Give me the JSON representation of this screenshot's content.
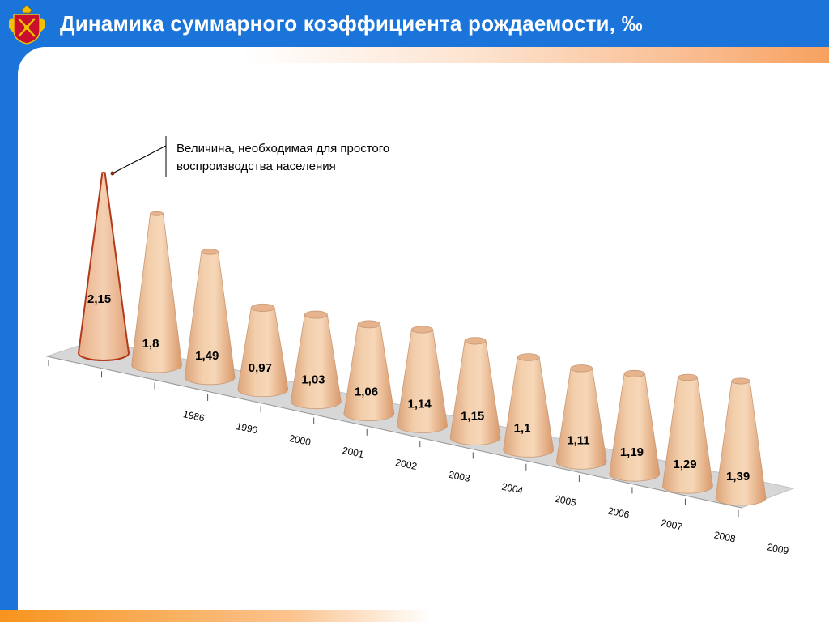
{
  "title": "Динамика суммарного коэффициента рождаемости, ‰",
  "colors": {
    "header_blue": "#1a74d9",
    "cone_fill": "#f0c29c",
    "cone_highlight": "#e8a97a",
    "reference_outline": "#b23a1a",
    "floor": "#d7d7d7"
  },
  "annotation": {
    "line1": "Величина, необходимая для простого",
    "line2": "воспроизводства населения"
  },
  "chart_data": {
    "type": "bar",
    "categories": [
      "",
      "1986",
      "1990",
      "2000",
      "2001",
      "2002",
      "2003",
      "2004",
      "2005",
      "2006",
      "2007",
      "2008",
      "2009"
    ],
    "value_labels": [
      "2,15",
      "1,8",
      "1,49",
      "0,97",
      "1,03",
      "1,06",
      "1,14",
      "1,15",
      "1,1",
      "1,11",
      "1,19",
      "1,29",
      "1,39"
    ],
    "values": [
      2.15,
      1.8,
      1.49,
      0.97,
      1.03,
      1.06,
      1.14,
      1.15,
      1.1,
      1.11,
      1.19,
      1.29,
      1.39
    ],
    "grid": false,
    "legend": "none"
  }
}
